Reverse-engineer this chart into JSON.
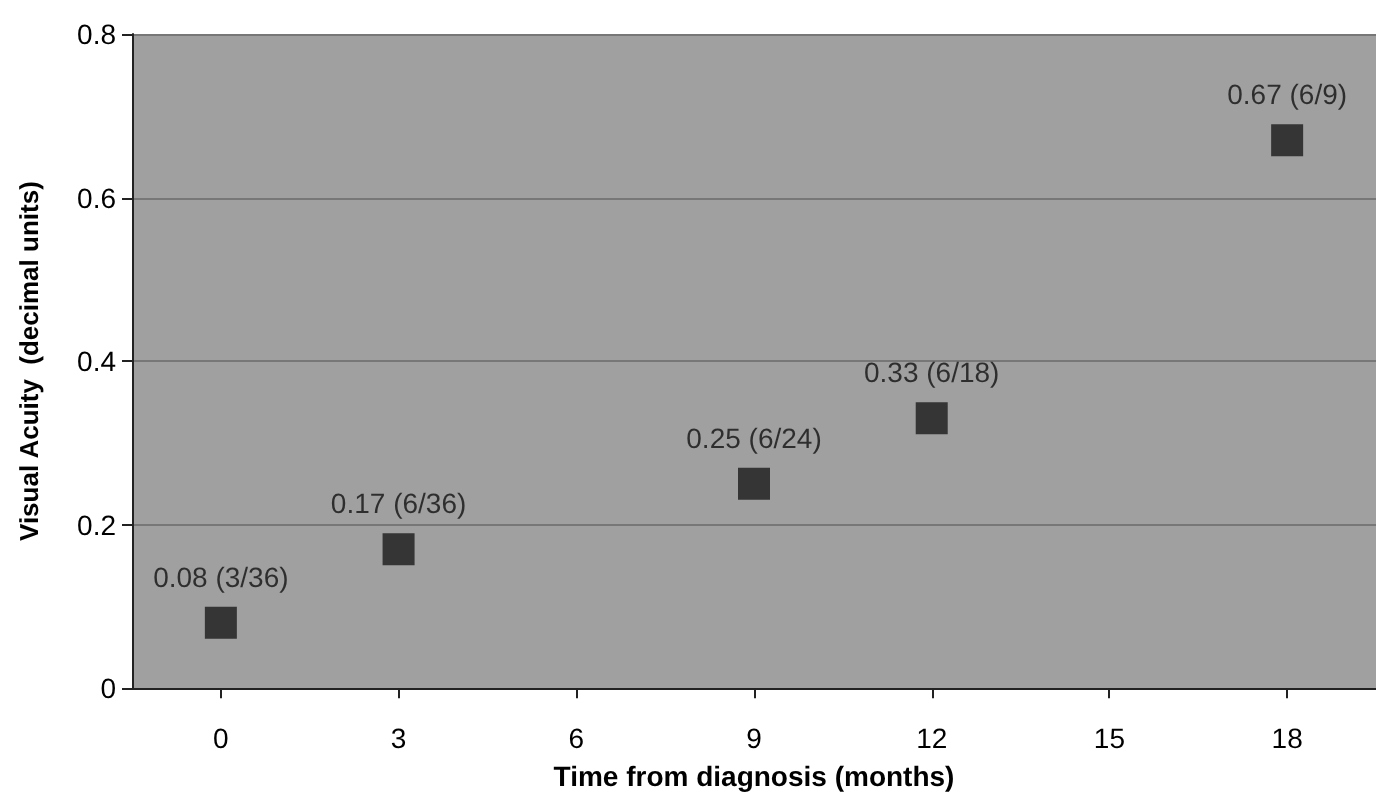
{
  "chart_data": {
    "type": "scatter",
    "xlabel": "Time from diagnosis (months)",
    "ylabel": "Visual Acuity  (decimal units)",
    "x": [
      0,
      3,
      9,
      12,
      18
    ],
    "series": [
      {
        "color": "#1a1a1a",
        "values": [
          0.08,
          0.17,
          0.25,
          0.33,
          0.67
        ],
        "value_labels": [
          "0.08 (3/36)",
          "0.17 (6/36)",
          "0.25 (6/24)",
          "0.33 (6/18)",
          "0.67 (6/9)"
        ]
      }
    ],
    "xlim": [
      -1.5,
      19.5
    ],
    "xticks": [
      0,
      3,
      6,
      9,
      12,
      15,
      18
    ],
    "ylim": [
      0,
      0.8
    ],
    "yticks": [
      0,
      0.2,
      0.4,
      0.6,
      0.8
    ],
    "grid": "y",
    "marker": "square"
  }
}
